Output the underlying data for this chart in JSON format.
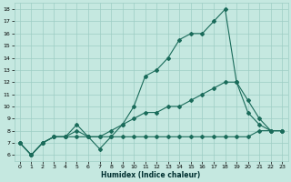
{
  "xlabel": "Humidex (Indice chaleur)",
  "bg_color": "#c5e8e0",
  "grid_color": "#9dcdc4",
  "line_color": "#1a6b5a",
  "xlim": [
    -0.5,
    23.5
  ],
  "ylim": [
    5.5,
    18.5
  ],
  "xticks": [
    0,
    1,
    2,
    3,
    4,
    5,
    6,
    7,
    8,
    9,
    10,
    11,
    12,
    13,
    14,
    15,
    16,
    17,
    18,
    19,
    20,
    21,
    22,
    23
  ],
  "yticks": [
    6,
    7,
    8,
    9,
    10,
    11,
    12,
    13,
    14,
    15,
    16,
    17,
    18
  ],
  "line1_x": [
    0,
    1,
    2,
    3,
    4,
    5,
    6,
    7,
    8,
    9,
    10,
    11,
    12,
    13,
    14,
    15,
    16,
    17,
    18,
    19,
    20,
    21,
    22,
    23
  ],
  "line1_y": [
    7.0,
    6.0,
    7.0,
    7.5,
    7.5,
    8.5,
    7.5,
    6.5,
    7.5,
    8.5,
    10.0,
    12.5,
    13.0,
    14.0,
    15.5,
    16.0,
    16.0,
    17.0,
    18.0,
    12.0,
    9.5,
    8.5,
    8.0,
    8.0
  ],
  "line2_x": [
    0,
    1,
    2,
    3,
    4,
    5,
    6,
    7,
    8,
    9,
    10,
    11,
    12,
    13,
    14,
    15,
    16,
    17,
    18,
    19,
    20,
    21,
    22,
    23
  ],
  "line2_y": [
    7.0,
    6.0,
    7.0,
    7.5,
    7.5,
    8.0,
    7.5,
    7.5,
    8.0,
    8.5,
    9.0,
    9.5,
    9.5,
    10.0,
    10.0,
    10.5,
    11.0,
    11.5,
    12.0,
    12.0,
    10.5,
    9.0,
    8.0,
    8.0
  ],
  "line3_x": [
    0,
    1,
    2,
    3,
    4,
    5,
    6,
    7,
    8,
    9,
    10,
    11,
    12,
    13,
    14,
    15,
    16,
    17,
    18,
    19,
    20,
    21,
    22,
    23
  ],
  "line3_y": [
    7.0,
    6.0,
    7.0,
    7.5,
    7.5,
    7.5,
    7.5,
    7.5,
    7.5,
    7.5,
    7.5,
    7.5,
    7.5,
    7.5,
    7.5,
    7.5,
    7.5,
    7.5,
    7.5,
    7.5,
    7.5,
    8.0,
    8.0,
    8.0
  ],
  "markersize": 2.0,
  "linewidth": 0.8,
  "tick_fontsize": 4.5,
  "xlabel_fontsize": 5.5
}
